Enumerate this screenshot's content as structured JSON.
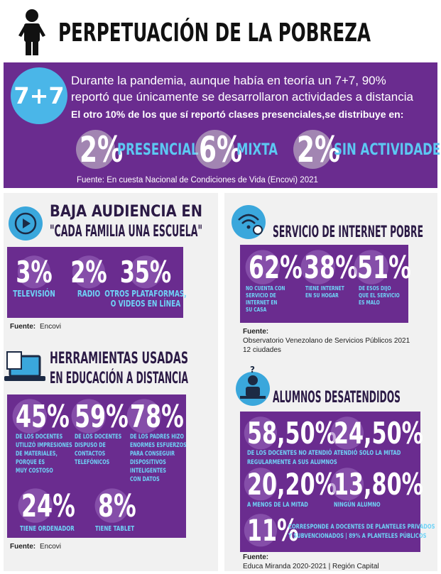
{
  "title": "PERPETUACIÓN DE LA POBREZA",
  "intro": {
    "badge": "7+7",
    "lines": [
      "Durante la pandemia, aunque había en teoría un 7+7, 90%",
      "reportó que únicamente se desarrollaron actividades a distancia"
    ],
    "subtitle": "El otro 10% de los que sí reportó clases presenciales,se distribuye en:",
    "stats": [
      {
        "value": "2%",
        "label": [
          "PRESENCIAL"
        ]
      },
      {
        "value": "6%",
        "label": [
          "MIXTA"
        ]
      },
      {
        "value": "2%",
        "label": [
          "SIN ACTIVIDADES"
        ]
      }
    ],
    "source": "Fuente: En cuesta Nacional de Condiciones de Vida (Encovi) 2021"
  },
  "sections": [
    {
      "title": [
        "BAJA AUDIENCIA EN",
        "\"CADA FAMILIA UNA ESCUELA\""
      ],
      "stats": [
        {
          "value": "3%",
          "label": [
            "TELEVISIÓN"
          ]
        },
        {
          "value": "2%",
          "label": [
            "RADIO"
          ]
        },
        {
          "value": "35%",
          "label": [
            "OTROS PLATAFORMAS,",
            "O VIDEOS EN LÍNEA"
          ]
        }
      ],
      "source_label": "Fuente:",
      "source": [
        "Encovi"
      ]
    },
    {
      "title": [
        "HERRAMIENTAS USADAS",
        "EN EDUCACIÓN A DISTANCIA"
      ],
      "stats": [
        {
          "value": "45%",
          "label": [
            "DE LOS DOCENTES",
            "UTILIZÓ IMPRESIONES",
            "DE MATERIALES,",
            "PORQUE ES",
            "MUY COSTOSO"
          ]
        },
        {
          "value": "59%",
          "label": [
            "DE LOS DOCENTES",
            "DISPUSO DE",
            "CONTACTOS",
            "TELEFÓNICOS"
          ]
        },
        {
          "value": "78%",
          "label": [
            "DE LOS PADRES HIZO",
            "ENORMES ESFUERZOS",
            "PARA CONSEGUIR",
            "DISPOSITIVOS",
            "INTELIGENTES",
            "CON DATOS"
          ]
        },
        {
          "value": "24%",
          "label": [
            "TIENE ORDENADOR"
          ]
        },
        {
          "value": "8%",
          "label": [
            "TIENE TABLET"
          ]
        }
      ],
      "source_label": "Fuente:",
      "source": [
        "Encovi"
      ]
    },
    {
      "title": [
        "SERVICIO DE INTERNET POBRE"
      ],
      "stats": [
        {
          "value": "62%",
          "label": [
            "NO CUENTA CON",
            "SERVICIO DE",
            "INTERNET EN",
            "SU CASA"
          ]
        },
        {
          "value": "38%",
          "label": [
            "TIENE INTERNET",
            "EN SU HOGAR"
          ]
        },
        {
          "value": "51%",
          "label": [
            "DE ESOS DIJO",
            "QUE EL SERVICIO",
            "ES MALO"
          ]
        }
      ],
      "source_label": "Fuente:",
      "source": [
        "Observatorio Venezolano de Servicios Públicos 2021",
        "12 ciudades"
      ]
    },
    {
      "title": [
        "ALUMNOS DESATENDIDOS"
      ],
      "stats": [
        {
          "value": "58,50%",
          "label": [
            "DE LOS DOCENTES NO ATENDIÓ",
            "REGULARMENTE A SUS ALUMNOS"
          ]
        },
        {
          "value": "24,50%",
          "label": [
            "ATENDIÓ SOLO LA MITAD"
          ]
        },
        {
          "value": "20,20%",
          "label": [
            "A MENOS DE LA MITAD"
          ]
        },
        {
          "value": "13,80%",
          "label": [
            "NINGÚN ALUMNO"
          ]
        },
        {
          "value": "11%",
          "label": [
            "CORRESPONDE A DOCENTES DE PLANTELES PRIVADOS",
            "Y SUBVENCIONADOS | 89% A PLANTELES PÚBLICOS"
          ]
        }
      ],
      "source_label": "Fuente:",
      "source": [
        "Educa Miranda 2020-2021 | Región Capital"
      ]
    }
  ]
}
